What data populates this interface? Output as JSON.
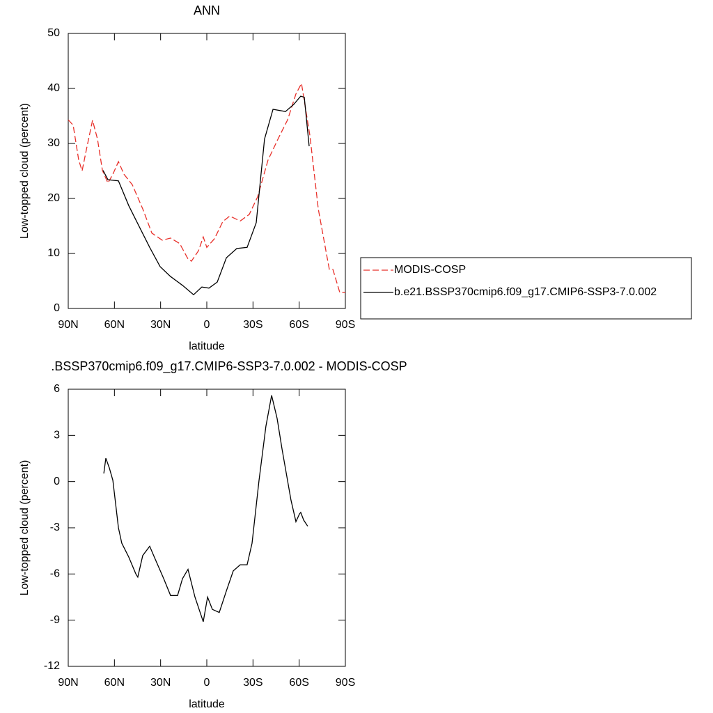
{
  "chart_data": [
    {
      "type": "line",
      "title": "ANN",
      "xlabel": "latitude",
      "ylabel": "Low-topped cloud (percent)",
      "xlim": [
        90,
        -90
      ],
      "xticks": [
        {
          "value": 90,
          "label": "90N"
        },
        {
          "value": 60,
          "label": "60N"
        },
        {
          "value": 30,
          "label": "30N"
        },
        0,
        {
          "value": -30,
          "label": "30S"
        },
        {
          "value": -60,
          "label": "60S"
        },
        {
          "value": -90,
          "label": "90S"
        }
      ],
      "ylim": [
        0,
        50
      ],
      "yticks": [
        0,
        10,
        20,
        30,
        40,
        50
      ],
      "legend": "right",
      "series": [
        {
          "name": "MODIS-COSP",
          "color": "#e8302a",
          "line_style": "dashed",
          "x": [
            90,
            86.8,
            83.2,
            81,
            78.2,
            74.2,
            71,
            67.8,
            64.2,
            61,
            57.4,
            53.8,
            48.4,
            41.6,
            35.7,
            28.9,
            23.5,
            17.6,
            12.2,
            10,
            5.4,
            2.3,
            0,
            -5,
            -10.4,
            -14.9,
            -21.7,
            -27.6,
            -33,
            -39.8,
            -46.6,
            -52.5,
            -57.9,
            -61.5,
            -67,
            -72.4,
            -78.2,
            -79.6,
            -81.9,
            -86.4,
            -90
          ],
          "values": [
            34.3,
            33.3,
            27,
            25,
            28.9,
            34.2,
            30.8,
            25.1,
            22.8,
            24.4,
            26.7,
            24.4,
            22.5,
            18.1,
            13.7,
            12.4,
            12.8,
            11.8,
            9,
            8.6,
            10.5,
            13,
            11.1,
            12.7,
            15.8,
            16.8,
            15.9,
            17.1,
            20.3,
            27,
            31,
            34.3,
            39,
            40.9,
            31.4,
            18.1,
            9.2,
            7.1,
            7.1,
            2.9,
            2.9
          ]
        },
        {
          "name": "b.e21.BSSP370cmip6.f09_g17.CMIP6-SSP3-7.0.002",
          "color": "#000000",
          "line_style": "solid",
          "x": [
            67.4,
            64.2,
            57.4,
            50.7,
            43.9,
            37.1,
            30.3,
            23.5,
            15.8,
            8.6,
            3.2,
            -1.4,
            -6.8,
            -12.7,
            -19.5,
            -26.2,
            -32.1,
            -37.5,
            -43,
            -51.1,
            -56.5,
            -61,
            -63.3,
            -66.5
          ],
          "values": [
            25.1,
            23.4,
            23.2,
            18.7,
            14.9,
            11.1,
            7.6,
            5.8,
            4.2,
            2.5,
            3.9,
            3.7,
            4.8,
            9.2,
            10.9,
            11.1,
            15.6,
            30.8,
            36.2,
            35.8,
            37.1,
            38.6,
            38.4,
            29.5
          ]
        }
      ]
    },
    {
      "type": "line",
      "title": ".BSSP370cmip6.f09_g17.CMIP6-SSP3-7.0.002 - MODIS-COSP",
      "xlabel": "latitude",
      "ylabel": "Low-topped cloud (percent)",
      "xlim": [
        90,
        -90
      ],
      "xticks": [
        {
          "value": 90,
          "label": "90N"
        },
        {
          "value": 60,
          "label": "60N"
        },
        {
          "value": 30,
          "label": "30N"
        },
        0,
        {
          "value": -30,
          "label": "30S"
        },
        {
          "value": -60,
          "label": "60S"
        },
        {
          "value": -90,
          "label": "90S"
        }
      ],
      "ylim": [
        -12,
        6
      ],
      "yticks": [
        -12,
        -9,
        -6,
        -3,
        0,
        3,
        6
      ],
      "series": [
        {
          "color": "#000000",
          "line_style": "solid",
          "x": [
            66.9,
            65.6,
            63.3,
            61,
            57.4,
            55.2,
            50.7,
            46.1,
            44.8,
            41.6,
            37.1,
            34.1,
            28,
            23.5,
            19,
            15.8,
            12.2,
            7.7,
            2.3,
            -0.5,
            -3.6,
            -8.1,
            -12.7,
            -17.2,
            -21.7,
            -26.2,
            -29.4,
            -33.9,
            -38.4,
            -42.1,
            -45.7,
            -48.9,
            -54.7,
            -57.9,
            -60.2,
            -61,
            -62.9,
            -65.6
          ],
          "values": [
            0.53,
            1.52,
            0.89,
            0.08,
            -3,
            -4,
            -4.9,
            -6,
            -6.2,
            -4.8,
            -4.2,
            -4.9,
            -6.3,
            -7.4,
            -7.4,
            -6.3,
            -5.7,
            -7.5,
            -9.1,
            -7.5,
            -8.3,
            -8.5,
            -7.1,
            -5.8,
            -5.4,
            -5.4,
            -4,
            0.08,
            3.6,
            5.6,
            4.1,
            2.1,
            -1.2,
            -2.6,
            -2.1,
            -2,
            -2.5,
            -2.9
          ]
        }
      ]
    }
  ]
}
